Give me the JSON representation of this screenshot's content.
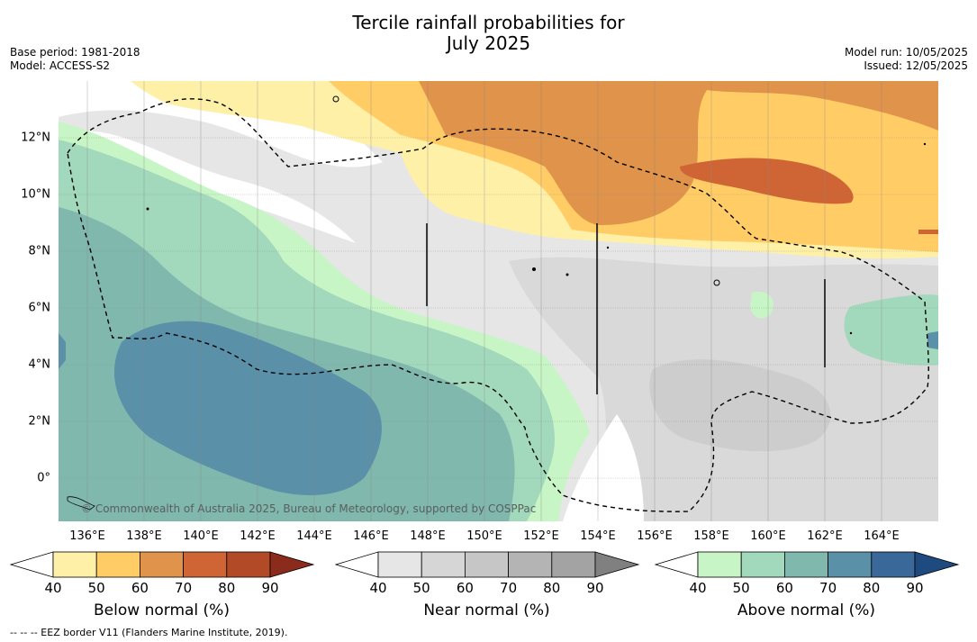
{
  "title_line1": "Tercile rainfall probabilities for",
  "title_line2": "July 2025",
  "base_period": "Base period: 1981-2018",
  "model": "Model: ACCESS-S2",
  "model_run": "Model run: 10/05/2025",
  "issued": "Issued: 12/05/2025",
  "credit": "© Commonwealth of Australia 2025, Bureau of Meteorology, supported by COSPPac",
  "footnote": "--  --  -- EEZ border V11 (Flanders Marine Institute, 2019).",
  "x_labels": [
    "136°E",
    "138°E",
    "140°E",
    "142°E",
    "144°E",
    "146°E",
    "148°E",
    "150°E",
    "152°E",
    "154°E",
    "156°E",
    "158°E",
    "160°E",
    "162°E",
    "164°E"
  ],
  "y_labels": [
    "12°N",
    "10°N",
    "8°N",
    "6°N",
    "4°N",
    "2°N",
    "0°"
  ],
  "colorbars": [
    {
      "title": "Below normal (%)",
      "ticks": [
        "40",
        "50",
        "60",
        "70",
        "80",
        "90"
      ],
      "colors": [
        "#fff0a8",
        "#ffcc66",
        "#e0934a",
        "#cf6535",
        "#b24a28"
      ],
      "over": "#8a2b1b"
    },
    {
      "title": "Near normal (%)",
      "ticks": [
        "40",
        "50",
        "60",
        "70",
        "80",
        "90"
      ],
      "colors": [
        "#e6e6e6",
        "#d6d6d6",
        "#c6c6c6",
        "#b4b4b4",
        "#a3a3a3"
      ],
      "over": "#808080"
    },
    {
      "title": "Above normal (%)",
      "ticks": [
        "40",
        "50",
        "60",
        "70",
        "80",
        "90"
      ],
      "colors": [
        "#c8f5c5",
        "#a2d8bb",
        "#80b8ae",
        "#5a90a8",
        "#3a6898"
      ],
      "over": "#1f4a80"
    }
  ]
}
